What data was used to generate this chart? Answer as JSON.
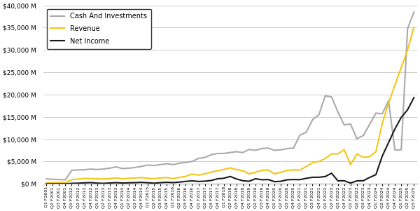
{
  "title": "",
  "ylabel": "",
  "xlabel": "",
  "line_colors": {
    "Revenue": "#f5c518",
    "Net Income": "#1a1a1a",
    "Cash And Investments": "#aaaaaa"
  },
  "line_widths": {
    "Revenue": 1.5,
    "Net Income": 1.5,
    "Cash And Investments": 1.5
  },
  "ylim": [
    0,
    40000
  ],
  "yticks": [
    0,
    5000,
    10000,
    15000,
    20000,
    25000,
    30000,
    35000,
    40000
  ],
  "background_color": "#ffffff",
  "grid_color": "#cccccc",
  "quarters": [
    "Q1 F2001",
    "Q2 F2001",
    "Q3 F2001",
    "Q4 F2001",
    "Q1 F2012",
    "Q2 F2012",
    "Q3 F2012",
    "Q4 F2012",
    "Q1 F2013",
    "Q2 F2013",
    "Q3 F2013",
    "Q4 F2013",
    "Q1 F2014",
    "Q2 F2014",
    "Q3 F2014",
    "Q4 F2014",
    "Q1 F2015",
    "Q2 F2015",
    "Q3 F2015",
    "Q4 F2015",
    "Q1 F2016",
    "Q2 F2016",
    "Q3 F2016",
    "Q4 F2016",
    "Q1 F2017",
    "Q2 F2017",
    "Q3 F2017",
    "Q4 F2017",
    "Q1 F2018",
    "Q2 F2018",
    "Q3 F2018",
    "Q4 F2018",
    "Q1 F2019",
    "Q2 F2019",
    "Q3 F2019",
    "Q4 F2019",
    "Q1 F2020",
    "Q2 F2020",
    "Q3 F2020",
    "Q4 F2020",
    "Q1 F2021",
    "Q2 F2021",
    "Q3 F2021",
    "Q4 F2021",
    "Q1 F2022",
    "Q2 F2022",
    "Q3 F2022",
    "Q4 F2022",
    "Q1 F2023",
    "Q2 F2023",
    "Q3 F2023",
    "Q4 F2023",
    "Q1 F2024",
    "Q2 F2024",
    "Q3 F2024",
    "Q4 F2024",
    "Q1 F2025",
    "Q2 F2025",
    "Q3 F2025"
  ],
  "revenue": [
    218,
    221,
    298,
    267,
    924,
    1055,
    1207,
    1170,
    1103,
    1094,
    1148,
    1320,
    1103,
    1225,
    1290,
    1402,
    1228,
    1153,
    1305,
    1401,
    1153,
    1428,
    1670,
    2173,
    1937,
    2230,
    2636,
    2910,
    3210,
    3581,
    3177,
    2910,
    2220,
    2579,
    3014,
    3105,
    2220,
    2579,
    3014,
    3105,
    3080,
    3866,
    4726,
    5003,
    5661,
    6704,
    6704,
    7643,
    4280,
    6704,
    5931,
    6051,
    7192,
    13507,
    18120,
    22103,
    26044,
    30040,
    35082
  ],
  "net_income": [
    -4,
    2,
    6,
    4,
    103,
    131,
    210,
    261,
    144,
    100,
    175,
    253,
    174,
    220,
    253,
    319,
    232,
    136,
    248,
    334,
    259,
    382,
    542,
    655,
    522,
    583,
    731,
    1120,
    1234,
    1642,
    1084,
    680,
    567,
    1135,
    899,
    950,
    476,
    552,
    899,
    950,
    917,
    1225,
    1453,
    1457,
    1618,
    2374,
    656,
    680,
    162,
    656,
    680,
    1414,
    2043,
    6188,
    9243,
    12285,
    14881,
    16599,
    19309
  ],
  "cash_investments": [
    1100,
    1000,
    950,
    900,
    3020,
    3100,
    3150,
    3300,
    3200,
    3300,
    3500,
    3800,
    3400,
    3500,
    3650,
    3900,
    4200,
    4100,
    4300,
    4500,
    4300,
    4600,
    4800,
    5000,
    5700,
    5900,
    6500,
    6800,
    6800,
    7000,
    7200,
    7000,
    7700,
    7500,
    7900,
    8000,
    7500,
    7600,
    7900,
    8000,
    10900,
    11560,
    14350,
    15470,
    19700,
    19500,
    16100,
    13200,
    13400,
    10100,
    10800,
    13300,
    15840,
    15700,
    18600,
    7600,
    7600,
    34800,
    38500
  ],
  "x_tick_labels": [
    "Q1 F2001",
    "Q2 F2001",
    "Q3 F2001",
    "Q4 F2001",
    "Q1 F2012",
    "Q2 F2012",
    "Q3 F2012",
    "Q4 F2012",
    "Q1 F2013",
    "Q2 F2013",
    "Q3 F2013",
    "Q4 F2013",
    "Q1 F2014",
    "Q2 F2014",
    "Q3 F2014",
    "Q4 F2014",
    "Q1 F2015",
    "Q2 F2015",
    "Q3 F2015",
    "Q4 F2015",
    "Q1 F2016",
    "Q2 F2016",
    "Q3 F2016",
    "Q4 F2016",
    "Q1 F2017",
    "Q2 F2017",
    "Q3 F2017",
    "Q4 F2017",
    "Q1 F2018",
    "Q2 F2018",
    "Q3 F2018",
    "Q4 F2018",
    "Q1 F2019",
    "Q2 F2019",
    "Q3 F2019",
    "Q4 F2019",
    "Q1 F2020",
    "Q2 F2020",
    "Q3 F2020",
    "Q4 F2020",
    "Q1 F2021",
    "Q2 F2021",
    "Q3 F2021",
    "Q4 F2021",
    "Q1 F2022",
    "Q2 F2022",
    "Q3 F2022",
    "Q4 F2022",
    "Q1 F2023",
    "Q2 F2023",
    "Q3 F2023",
    "Q4 F2023",
    "Q1 F2024",
    "Q2 F2024",
    "Q3 F2024",
    "Q4 F2024",
    "Q1 F2025",
    "Q2 F2025",
    "Q3 F2025"
  ]
}
